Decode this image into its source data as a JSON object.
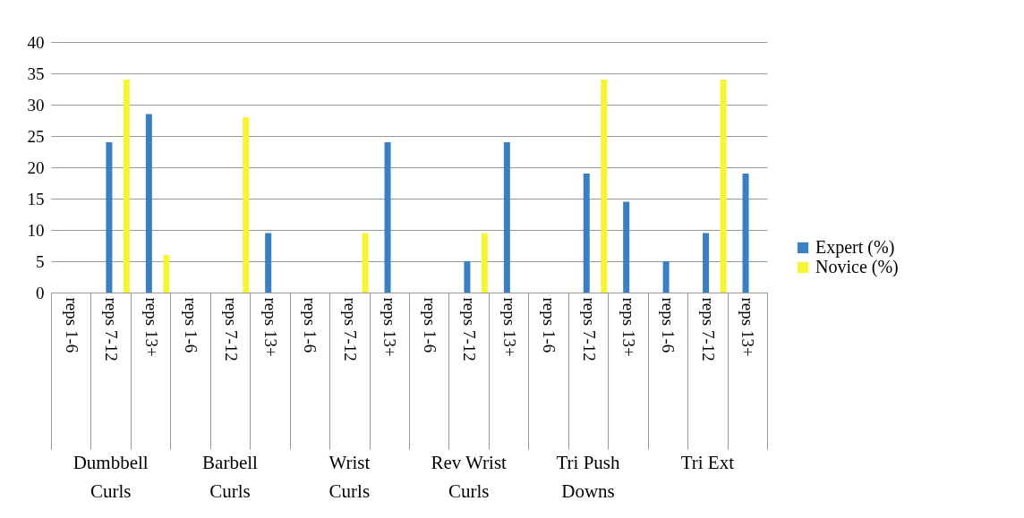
{
  "chart_data": {
    "type": "bar",
    "categories": [
      "reps 1-6",
      "reps 7-12",
      "reps 13+",
      "reps 1-6",
      "reps 7-12",
      "reps 13+",
      "reps 1-6",
      "reps 7-12",
      "reps 13+",
      "reps 1-6",
      "reps 7-12",
      "reps 13+",
      "reps 1-6",
      "reps 7-12",
      "reps 13+",
      "reps 1-6",
      "reps 7-12",
      "reps 13+"
    ],
    "series": [
      {
        "name": "Expert (%)",
        "color": "#3a7fc1",
        "values": [
          0,
          24,
          28.5,
          0,
          0,
          9.5,
          0,
          0,
          24,
          0,
          5,
          24,
          0,
          19,
          14.5,
          5,
          9.5,
          19
        ]
      },
      {
        "name": "Novice (%)",
        "color": "#f5f536",
        "values": [
          0,
          34,
          6,
          0,
          28,
          0,
          0,
          9.5,
          0,
          0,
          9.5,
          0,
          0,
          34,
          0,
          0,
          34,
          0
        ]
      }
    ],
    "annotations": [
      "Dumbbell Curls",
      "Barbell Curls",
      "Wrist Curls",
      "Rev Wrist Curls",
      "Tri Push Downs",
      "Tri Ext"
    ],
    "ylim": [
      0,
      40
    ],
    "yticks": [
      0,
      5,
      10,
      15,
      20,
      25,
      30,
      35,
      40
    ],
    "grid": "y",
    "legend": "right"
  }
}
